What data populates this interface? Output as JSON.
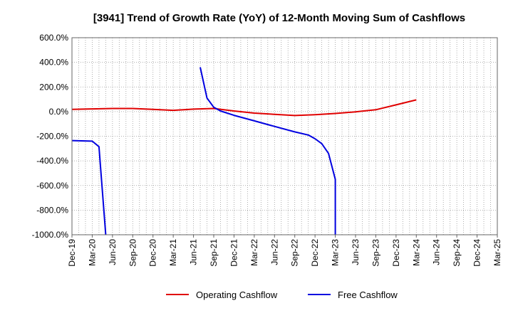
{
  "chart_data": {
    "type": "line",
    "title": "[3941]  Trend of Growth Rate (YoY) of 12-Month Moving Sum of Cashflows",
    "xlabel": "",
    "ylabel": "",
    "x_ticks": [
      "Dec-19",
      "Mar-20",
      "Jun-20",
      "Sep-20",
      "Dec-20",
      "Mar-21",
      "Jun-21",
      "Sep-21",
      "Dec-21",
      "Mar-22",
      "Jun-22",
      "Sep-22",
      "Dec-22",
      "Mar-23",
      "Jun-23",
      "Sep-23",
      "Dec-23",
      "Mar-24",
      "Jun-24",
      "Sep-24",
      "Dec-24",
      "Mar-25"
    ],
    "y_ticks": [
      "600.0%",
      "400.0%",
      "200.0%",
      "0.0%",
      "-200.0%",
      "-400.0%",
      "-600.0%",
      "-800.0%",
      "-1000.0%"
    ],
    "ylim": [
      -1000,
      600
    ],
    "grid": true,
    "legend_position": "bottom",
    "series": [
      {
        "name": "Operating Cashflow",
        "color": "#e00000",
        "points": [
          [
            "Dec-19",
            18
          ],
          [
            "Mar-20",
            22
          ],
          [
            "Jun-20",
            25
          ],
          [
            "Sep-20",
            25
          ],
          [
            "Dec-20",
            18
          ],
          [
            "Mar-21",
            10
          ],
          [
            "Jun-21",
            20
          ],
          [
            "Sep-21",
            25
          ],
          [
            "Dec-21",
            5
          ],
          [
            "Mar-22",
            -12
          ],
          [
            "Jun-22",
            -22
          ],
          [
            "Sep-22",
            -32
          ],
          [
            "Dec-22",
            -25
          ],
          [
            "Mar-23",
            -15
          ],
          [
            "Jun-23",
            -2
          ],
          [
            "Sep-23",
            15
          ],
          [
            "Dec-23",
            55
          ],
          [
            "Mar-24",
            95
          ]
        ]
      },
      {
        "name": "Free Cashflow",
        "color": "#0000e0",
        "points": [
          [
            "Dec-19",
            -235
          ],
          [
            "Mar-20",
            -240
          ],
          [
            "Apr-20",
            -285
          ],
          [
            "May-20",
            -1000
          ],
          null,
          [
            "Jul-21",
            360
          ],
          [
            "Aug-21",
            110
          ],
          [
            "Sep-21",
            35
          ],
          [
            "Oct-21",
            5
          ],
          [
            "Dec-21",
            -30
          ],
          [
            "Mar-22",
            -75
          ],
          [
            "Jun-22",
            -120
          ],
          [
            "Sep-22",
            -165
          ],
          [
            "Nov-22",
            -190
          ],
          [
            "Dec-22",
            -220
          ],
          [
            "Jan-23",
            -260
          ],
          [
            "Feb-23",
            -340
          ],
          [
            "Mar-23",
            -550
          ],
          [
            "Mar-23b",
            -1000
          ]
        ]
      }
    ]
  }
}
